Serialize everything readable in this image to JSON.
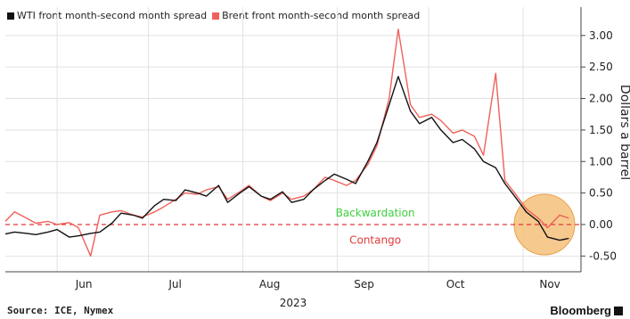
{
  "legend": {
    "wti_label": "WTI front month-second month spread",
    "brent_label": "Brent front month-second month spread"
  },
  "footer": {
    "source": "Source: ICE, Nymex",
    "brand": "Bloomberg"
  },
  "colors": {
    "wti": "#111111",
    "brent": "#f0605a",
    "zero_line": "#e03a3a",
    "backwardation": "#3ecf3e",
    "contango": "#e03a3a",
    "highlight": "#f5c07a"
  },
  "chart_data": {
    "type": "line",
    "title": "",
    "xlabel": "2023",
    "ylabel": "Dollars a barrel",
    "ylim": [
      -0.75,
      3.45
    ],
    "xlim": [
      "2023-05-15",
      "2023-11-20"
    ],
    "y_ticks": [
      3.0,
      2.5,
      2.0,
      1.5,
      1.0,
      0.5,
      0.0,
      -0.5
    ],
    "y_tick_labels": [
      "3.00",
      "2.50",
      "2.00",
      "1.50",
      "1.00",
      "0.50",
      "0.00",
      "-0.50"
    ],
    "x_ticks": [
      "2023-06-01",
      "2023-07-01",
      "2023-08-01",
      "2023-09-01",
      "2023-10-01",
      "2023-11-01"
    ],
    "x_tick_labels": [
      "Jun",
      "Jul",
      "Aug",
      "Sep",
      "Oct",
      "Nov"
    ],
    "year_label": "2023",
    "grid": true,
    "legend_position": "top-left",
    "annotations": [
      {
        "text": "Backwardation",
        "x": "2023-10-01",
        "y": 0.18,
        "color_key": "backwardation"
      },
      {
        "text": "Contango",
        "x": "2023-10-01",
        "y": -0.25,
        "color_key": "contango"
      }
    ],
    "highlight": {
      "center_x": "2023-11-08",
      "center_y": 0.0,
      "shape": "circle"
    },
    "reference_line": {
      "y": 0.0,
      "style": "dashed"
    },
    "series": [
      {
        "name": "WTI front month-second month spread",
        "color_key": "wti",
        "x": [
          "2023-05-15",
          "2023-05-18",
          "2023-05-22",
          "2023-05-25",
          "2023-05-29",
          "2023-06-01",
          "2023-06-05",
          "2023-06-08",
          "2023-06-12",
          "2023-06-15",
          "2023-06-19",
          "2023-06-22",
          "2023-06-26",
          "2023-06-29",
          "2023-07-03",
          "2023-07-06",
          "2023-07-10",
          "2023-07-13",
          "2023-07-17",
          "2023-07-20",
          "2023-07-24",
          "2023-07-27",
          "2023-07-31",
          "2023-08-03",
          "2023-08-07",
          "2023-08-10",
          "2023-08-14",
          "2023-08-17",
          "2023-08-21",
          "2023-08-24",
          "2023-08-28",
          "2023-08-31",
          "2023-09-04",
          "2023-09-07",
          "2023-09-11",
          "2023-09-14",
          "2023-09-18",
          "2023-09-21",
          "2023-09-25",
          "2023-09-28",
          "2023-10-02",
          "2023-10-05",
          "2023-10-09",
          "2023-10-12",
          "2023-10-16",
          "2023-10-19",
          "2023-10-23",
          "2023-10-26",
          "2023-10-30",
          "2023-11-02",
          "2023-11-06",
          "2023-11-09",
          "2023-11-13",
          "2023-11-16"
        ],
        "values": [
          -0.15,
          -0.12,
          -0.14,
          -0.16,
          -0.12,
          -0.08,
          -0.2,
          -0.18,
          -0.14,
          -0.12,
          0.02,
          0.18,
          0.15,
          0.1,
          0.3,
          0.4,
          0.38,
          0.55,
          0.5,
          0.45,
          0.62,
          0.35,
          0.5,
          0.6,
          0.45,
          0.4,
          0.52,
          0.35,
          0.4,
          0.55,
          0.7,
          0.8,
          0.72,
          0.65,
          1.0,
          1.3,
          1.9,
          2.35,
          1.8,
          1.6,
          1.7,
          1.5,
          1.3,
          1.35,
          1.2,
          1.0,
          0.9,
          0.65,
          0.4,
          0.2,
          0.05,
          -0.2,
          -0.25,
          -0.22
        ]
      },
      {
        "name": "Brent front month-second month spread",
        "color_key": "brent",
        "x": [
          "2023-05-15",
          "2023-05-18",
          "2023-05-22",
          "2023-05-25",
          "2023-05-29",
          "2023-06-01",
          "2023-06-05",
          "2023-06-08",
          "2023-06-12",
          "2023-06-15",
          "2023-06-19",
          "2023-06-22",
          "2023-06-26",
          "2023-06-29",
          "2023-07-03",
          "2023-07-06",
          "2023-07-10",
          "2023-07-13",
          "2023-07-17",
          "2023-07-20",
          "2023-07-24",
          "2023-07-27",
          "2023-07-31",
          "2023-08-03",
          "2023-08-07",
          "2023-08-10",
          "2023-08-14",
          "2023-08-17",
          "2023-08-21",
          "2023-08-24",
          "2023-08-28",
          "2023-08-31",
          "2023-09-04",
          "2023-09-07",
          "2023-09-11",
          "2023-09-14",
          "2023-09-18",
          "2023-09-21",
          "2023-09-25",
          "2023-09-28",
          "2023-10-02",
          "2023-10-05",
          "2023-10-09",
          "2023-10-12",
          "2023-10-16",
          "2023-10-19",
          "2023-10-23",
          "2023-10-26",
          "2023-10-30",
          "2023-11-02",
          "2023-11-06",
          "2023-11-09",
          "2023-11-13",
          "2023-11-16"
        ],
        "values": [
          0.05,
          0.2,
          0.1,
          0.02,
          0.05,
          0.0,
          0.03,
          -0.05,
          -0.5,
          0.15,
          0.2,
          0.22,
          0.15,
          0.12,
          0.2,
          0.28,
          0.4,
          0.5,
          0.48,
          0.55,
          0.6,
          0.4,
          0.52,
          0.62,
          0.45,
          0.38,
          0.5,
          0.4,
          0.45,
          0.55,
          0.75,
          0.7,
          0.62,
          0.7,
          0.95,
          1.25,
          2.0,
          3.1,
          1.9,
          1.7,
          1.75,
          1.65,
          1.45,
          1.5,
          1.4,
          1.1,
          2.4,
          0.7,
          0.45,
          0.25,
          0.1,
          -0.05,
          0.15,
          0.1
        ]
      }
    ]
  }
}
